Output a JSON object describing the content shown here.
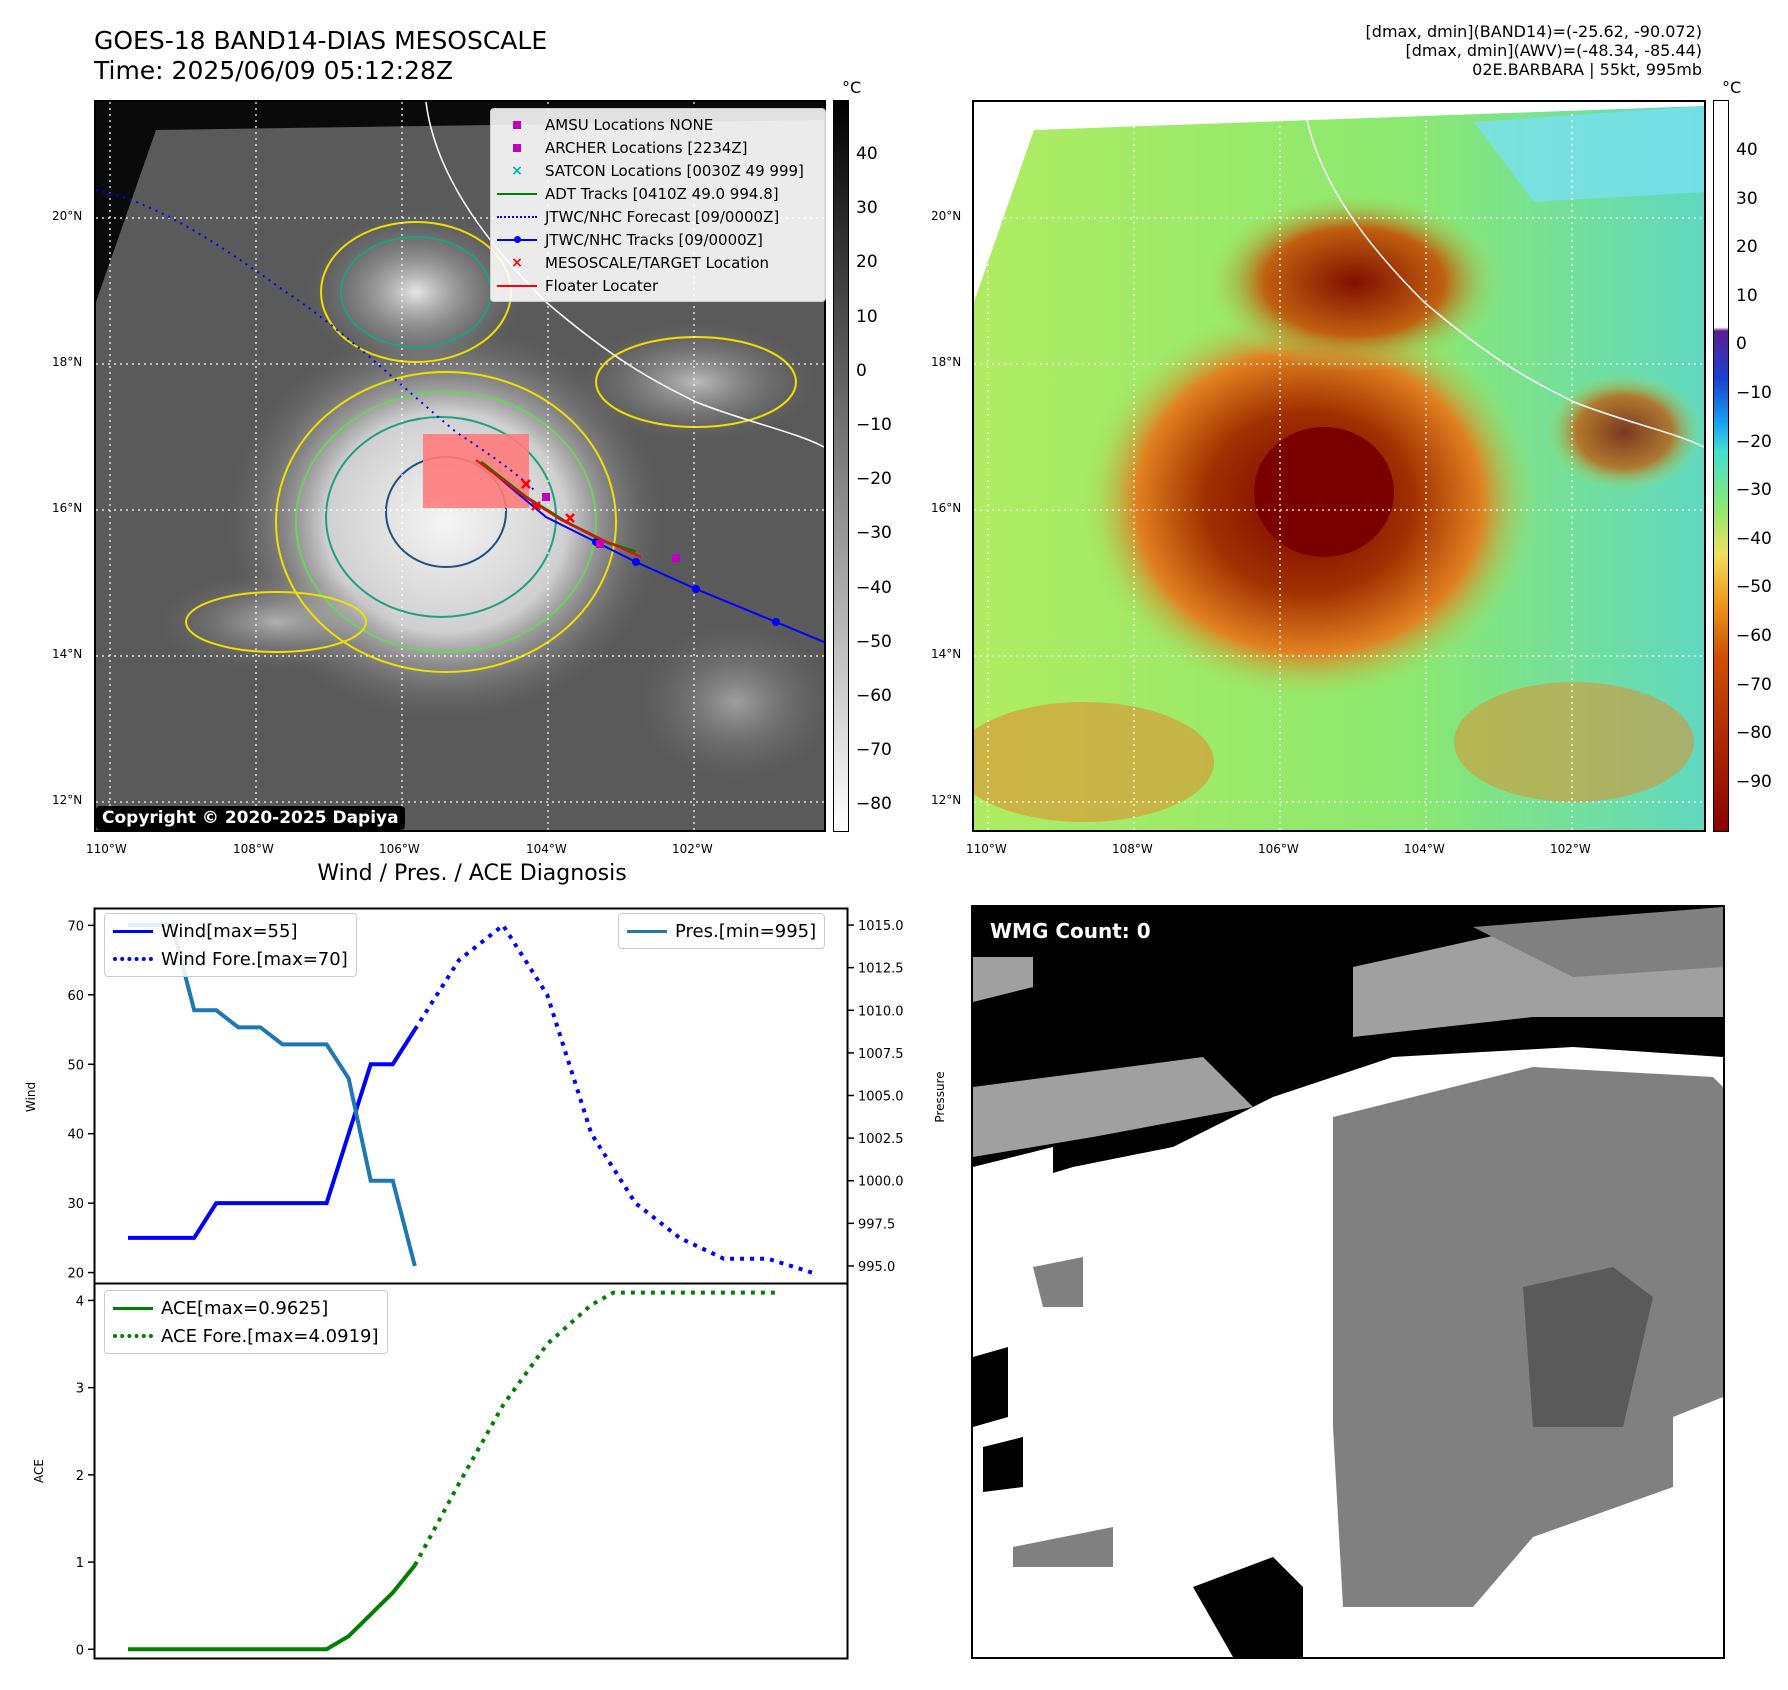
{
  "header": {
    "title_line1": "GOES-18 BAND14-DIAS MESOSCALE",
    "title_line2": "Time: 2025/06/09 05:12:28Z",
    "stats_line1": "[dmax, dmin](BAND14)=(-25.62, -90.072)",
    "stats_line2": "[dmax, dmin](AWV)=(-48.34, -85.44)",
    "stats_line3": "02E.BARBARA | 55kt, 995mb"
  },
  "map_axes": {
    "lat_labels": [
      "20°N",
      "18°N",
      "16°N",
      "14°N",
      "12°N"
    ],
    "lon_labels": [
      "110°W",
      "108°W",
      "106°W",
      "104°W",
      "102°W"
    ]
  },
  "colorbar_left": {
    "unit": "°C",
    "ticks": [
      "40",
      "30",
      "20",
      "10",
      "0",
      "−10",
      "−20",
      "−30",
      "−40",
      "−50",
      "−60",
      "−70",
      "−80"
    ]
  },
  "colorbar_right": {
    "unit": "°C",
    "ticks": [
      "40",
      "30",
      "20",
      "10",
      "0",
      "−10",
      "−20",
      "−30",
      "−40",
      "−50",
      "−60",
      "−70",
      "−80",
      "−90"
    ]
  },
  "map_legend": {
    "items": [
      {
        "label": "AMSU Locations NONE",
        "color": "#c000c0",
        "marker": "square"
      },
      {
        "label": "ARCHER Locations [2234Z]",
        "color": "#c000c0",
        "marker": "square"
      },
      {
        "label": "SATCON Locations [0030Z 49 999]",
        "color": "#00b0b0",
        "marker": "x"
      },
      {
        "label": "ADT Tracks [0410Z 49.0 994.8]",
        "color": "#008000",
        "marker": "line"
      },
      {
        "label": "JTWC/NHC Forecast [09/0000Z]",
        "color": "#0000ff",
        "marker": "dotted"
      },
      {
        "label": "JTWC/NHC Tracks [09/0000Z]",
        "color": "#0000ff",
        "marker": "line-dot"
      },
      {
        "label": "MESOSCALE/TARGET Location",
        "color": "#ff0000",
        "marker": "x"
      },
      {
        "label": "Floater Locater",
        "color": "#ff0000",
        "marker": "line"
      }
    ]
  },
  "copyright": "Copyright © 2020-2025 Dapiya",
  "wmg": "WMG Count: 0",
  "chart_data": [
    {
      "type": "line",
      "title": "Wind / Pres. / ACE Diagnosis",
      "ylabel": "Wind",
      "ylabel_right": "Pressure",
      "ylim": [
        18.5,
        72.5
      ],
      "ylim_right": [
        994.0,
        1016.0
      ],
      "yticks": [
        20,
        30,
        40,
        50,
        60,
        70
      ],
      "yticks_right": [
        "995.0",
        "997.5",
        "1000.0",
        "1002.5",
        "1005.0",
        "1007.5",
        "1010.0",
        "1012.5",
        "1015.0"
      ],
      "series": [
        {
          "name": "Wind[max=55]",
          "color": "#0000ff",
          "style": "solid",
          "x": [
            0,
            1,
            2,
            3,
            4,
            5,
            6,
            7,
            8,
            9,
            10,
            11,
            12,
            13
          ],
          "values": [
            25,
            25,
            25,
            25,
            30,
            30,
            30,
            30,
            30,
            30,
            40,
            50,
            50,
            55
          ]
        },
        {
          "name": "Wind Fore.[max=70]",
          "color": "#0000ff",
          "style": "dotted",
          "x": [
            13,
            15,
            17,
            19,
            21,
            23,
            25,
            27,
            29,
            31
          ],
          "values": [
            55,
            65,
            70,
            60,
            40,
            30,
            25,
            22,
            22,
            20
          ]
        },
        {
          "name": "Pres.[min=995]",
          "color": "#1f77b4",
          "style": "solid",
          "axis": "right",
          "x": [
            0,
            1,
            2,
            3,
            4,
            5,
            6,
            7,
            8,
            9,
            10,
            11,
            12,
            13
          ],
          "values": [
            1015,
            1015,
            1015,
            1010,
            1010,
            1009,
            1009,
            1008,
            1008,
            1008,
            1006,
            1000,
            1000,
            995
          ]
        }
      ]
    },
    {
      "type": "line",
      "ylabel": "ACE",
      "ylim": [
        -0.1,
        4.2
      ],
      "yticks": [
        0,
        1,
        2,
        3,
        4
      ],
      "series": [
        {
          "name": "ACE[max=0.9625]",
          "color": "#008000",
          "style": "solid",
          "x": [
            0,
            9,
            10,
            11,
            12,
            13
          ],
          "values": [
            0,
            0,
            0.15,
            0.4,
            0.65,
            0.9625
          ]
        },
        {
          "name": "ACE Fore.[max=4.0919]",
          "color": "#008000",
          "style": "dotted",
          "x": [
            13,
            15,
            17,
            19,
            21,
            22,
            24,
            26,
            28,
            29.5
          ],
          "values": [
            0.9625,
            1.9,
            2.8,
            3.5,
            3.95,
            4.09,
            4.09,
            4.09,
            4.09,
            4.09
          ]
        }
      ]
    }
  ]
}
